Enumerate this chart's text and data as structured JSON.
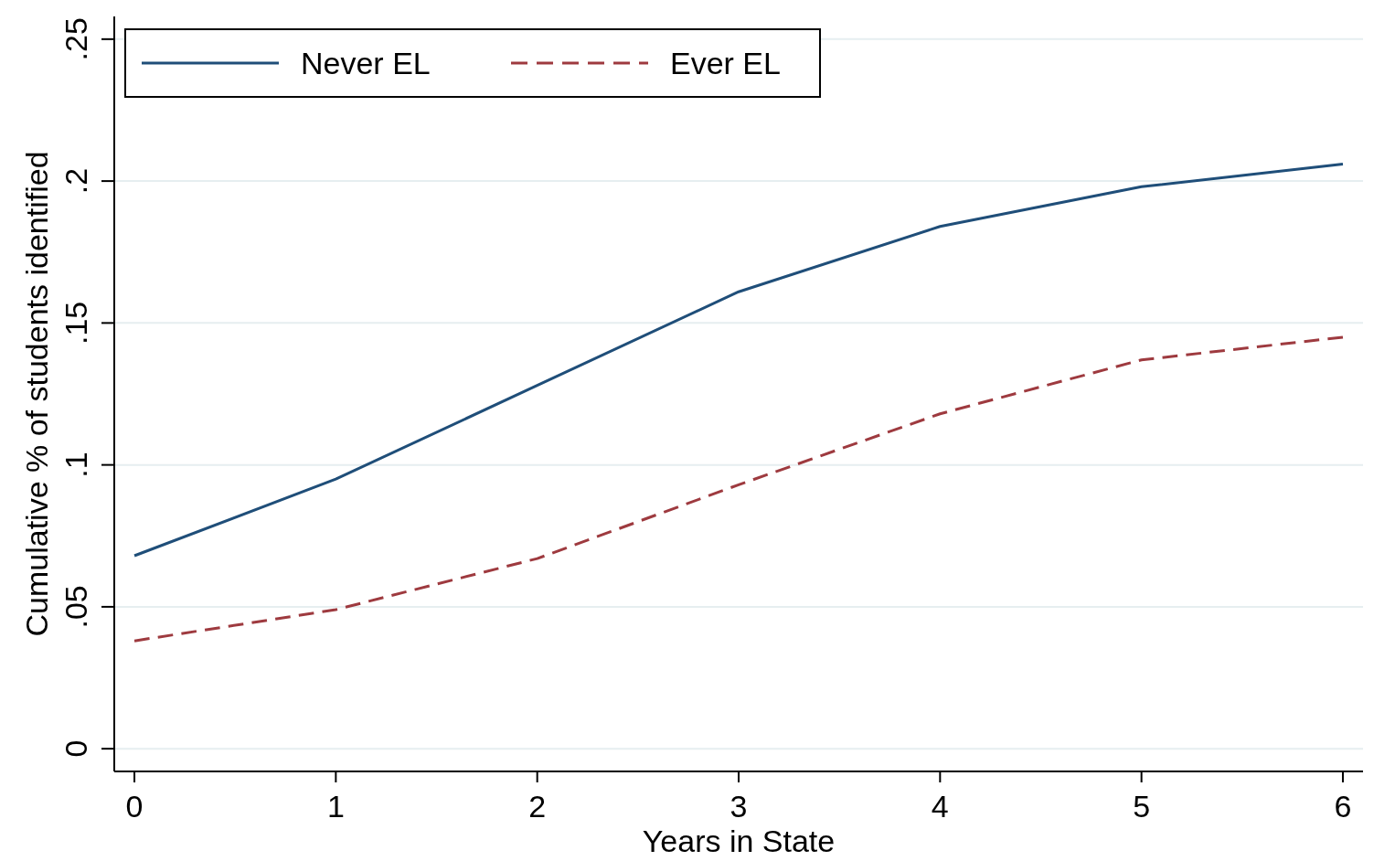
{
  "chart_data": {
    "type": "line",
    "xlabel": "Years in State",
    "ylabel": "Cumulative % of students identified",
    "x": [
      0,
      1,
      2,
      3,
      4,
      5,
      6
    ],
    "series": [
      {
        "name": "Never EL",
        "color": "#1f4e79",
        "line_style": "solid",
        "values": [
          0.068,
          0.095,
          0.128,
          0.161,
          0.184,
          0.198,
          0.206
        ]
      },
      {
        "name": "Ever EL",
        "color": "#9e3a3f",
        "line_style": "dashed",
        "values": [
          0.038,
          0.049,
          0.067,
          0.093,
          0.118,
          0.137,
          0.145
        ]
      }
    ],
    "xlim": [
      -0.1,
      6.1
    ],
    "ylim": [
      -0.008,
      0.258
    ],
    "xticks": [
      0,
      1,
      2,
      3,
      4,
      5,
      6
    ],
    "yticks": [
      {
        "value": 0,
        "label": "0"
      },
      {
        "value": 0.05,
        "label": ".05"
      },
      {
        "value": 0.1,
        "label": ".1"
      },
      {
        "value": 0.15,
        "label": ".15"
      },
      {
        "value": 0.2,
        "label": ".2"
      },
      {
        "value": 0.25,
        "label": ".25"
      }
    ],
    "grid": "y",
    "legend": "top left",
    "marker": "none"
  }
}
